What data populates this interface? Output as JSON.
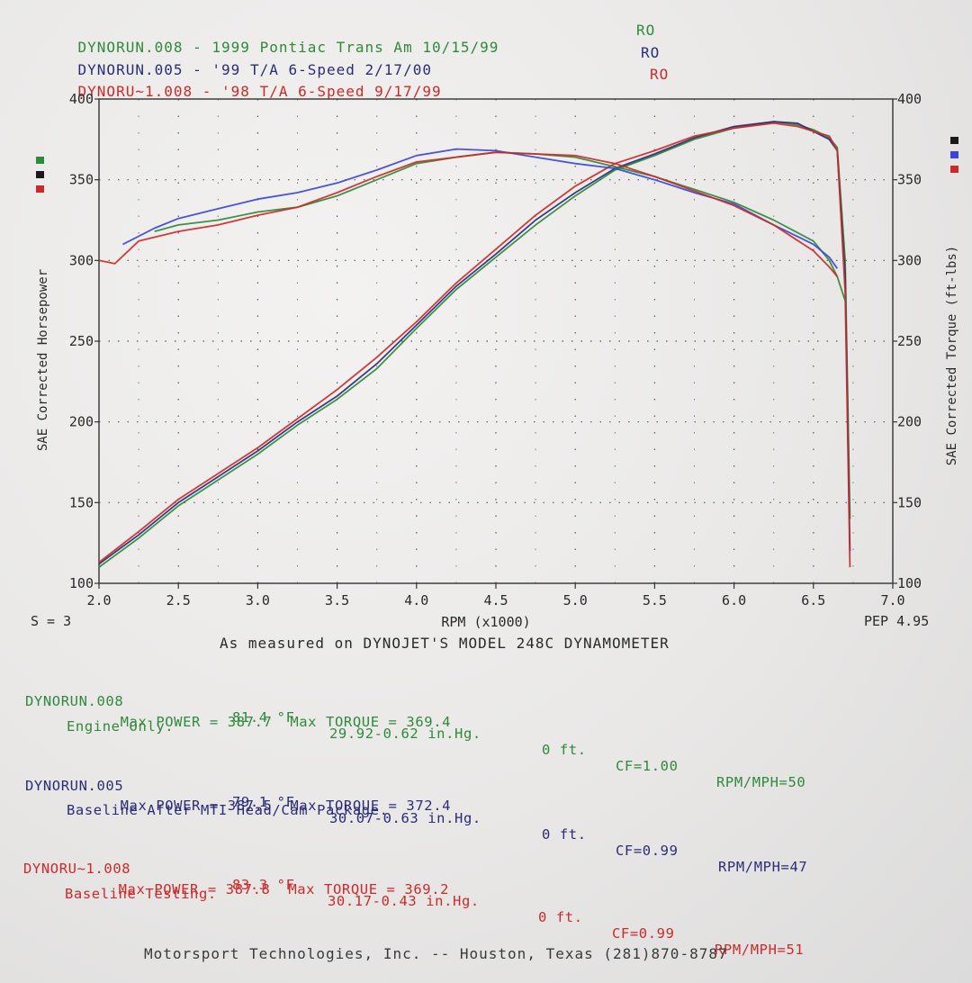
{
  "runs": [
    {
      "file": "DYNORUN.008",
      "desc": "1999 Pontiac Trans Am 10/15/99",
      "code": "RO",
      "color": "#2f8a3a",
      "temp": "81.4 °F",
      "pressure": "29.92-0.62 in.Hg.",
      "alt": "0 ft.",
      "cf": "CF=1.00",
      "rpm_mph": "RPM/MPH=50",
      "max_power": "Max POWER = 387.7",
      "max_torque": "Max TORQUE = 369.4",
      "note": "Engine Only."
    },
    {
      "file": "DYNORUN.005",
      "desc": "'99 T/A 6-Speed 2/17/00",
      "code": "RO",
      "color": "#2b2d78",
      "temp": "79.1 °F",
      "pressure": "30.07-0.63 in.Hg.",
      "alt": "0 ft.",
      "cf": "CF=0.99",
      "rpm_mph": "RPM/MPH=47",
      "max_power": "Max POWER = 387.5",
      "max_torque": "Max TORQUE = 372.4",
      "note": "Baseline After MTI Head/Cam Package."
    },
    {
      "file": "DYNORU~1.008",
      "desc": "'98 T/A 6-Speed 9/17/99",
      "code": "RO",
      "color": "#cc2a2a",
      "temp": "83.3 °F",
      "pressure": "30.17-0.43 in.Hg.",
      "alt": "0 ft.",
      "cf": "CF=0.99",
      "rpm_mph": "RPM/MPH=51",
      "max_power": "Max POWER = 387.8",
      "max_torque": "Max TORQUE = 369.2",
      "note": "Baseline Testing."
    }
  ],
  "chart_data": {
    "type": "line",
    "xlabel": "RPM (x1000)",
    "ylabel_left": "SAE Corrected Horsepower",
    "ylabel_right": "SAE Corrected Torque (ft-lbs)",
    "xlim": [
      2.0,
      7.0
    ],
    "ylim": [
      100,
      400
    ],
    "x_ticks": [
      "2.0",
      "2.5",
      "3.0",
      "3.5",
      "4.0",
      "4.5",
      "5.0",
      "5.5",
      "6.0",
      "6.5",
      "7.0"
    ],
    "y_ticks": [
      "100",
      "150",
      "200",
      "250",
      "300",
      "350",
      "400"
    ],
    "grid": true,
    "series": [
      {
        "name": "DYNORUN.008 Horsepower",
        "color": "#2f8a3a",
        "x": [
          2.0,
          2.25,
          2.5,
          2.75,
          3.0,
          3.25,
          3.5,
          3.75,
          4.0,
          4.25,
          4.5,
          4.75,
          5.0,
          5.25,
          5.5,
          5.75,
          6.0,
          6.25,
          6.4,
          6.5,
          6.6,
          6.65,
          6.7,
          6.73
        ],
        "y": [
          110,
          128,
          148,
          164,
          180,
          198,
          214,
          233,
          258,
          282,
          302,
          322,
          340,
          356,
          365,
          375,
          382,
          386,
          384,
          381,
          376,
          370,
          300,
          140
        ]
      },
      {
        "name": "DYNORUN.005 Horsepower",
        "color": "#2b2d78",
        "x": [
          2.0,
          2.25,
          2.5,
          2.75,
          3.0,
          3.25,
          3.5,
          3.75,
          4.0,
          4.25,
          4.5,
          4.75,
          5.0,
          5.25,
          5.5,
          5.75,
          6.0,
          6.25,
          6.4,
          6.5,
          6.6,
          6.65,
          6.7,
          6.73
        ],
        "y": [
          112,
          130,
          150,
          166,
          182,
          200,
          216,
          236,
          260,
          284,
          304,
          325,
          342,
          357,
          366,
          376,
          383,
          386,
          385,
          380,
          375,
          368,
          290,
          120
        ]
      },
      {
        "name": "DYNORU~1.008 Horsepower",
        "color": "#cc2a2a",
        "x": [
          2.0,
          2.25,
          2.5,
          2.75,
          3.0,
          3.25,
          3.5,
          3.75,
          4.0,
          4.25,
          4.5,
          4.75,
          5.0,
          5.25,
          5.5,
          5.75,
          6.0,
          6.25,
          6.4,
          6.5,
          6.6,
          6.65,
          6.7,
          6.73
        ],
        "y": [
          113,
          132,
          152,
          168,
          184,
          202,
          220,
          240,
          262,
          286,
          307,
          328,
          346,
          360,
          368,
          377,
          382,
          385,
          383,
          380,
          377,
          368,
          280,
          110
        ]
      },
      {
        "name": "DYNORUN.008 Torque",
        "color": "#2f8a3a",
        "x": [
          2.35,
          2.5,
          2.75,
          3.0,
          3.25,
          3.5,
          3.75,
          4.0,
          4.25,
          4.5,
          4.75,
          5.0,
          5.25,
          5.5,
          5.75,
          6.0,
          6.25,
          6.5,
          6.6,
          6.65,
          6.7
        ],
        "y": [
          318,
          322,
          325,
          330,
          333,
          340,
          350,
          360,
          364,
          367,
          366,
          364,
          358,
          352,
          344,
          336,
          325,
          312,
          300,
          290,
          275
        ]
      },
      {
        "name": "DYNORUN.005 Torque",
        "color": "#3c46d6",
        "x": [
          2.15,
          2.35,
          2.5,
          2.75,
          3.0,
          3.25,
          3.5,
          3.75,
          4.0,
          4.25,
          4.5,
          4.75,
          5.0,
          5.25,
          5.5,
          5.75,
          6.0,
          6.25,
          6.5,
          6.6,
          6.65
        ],
        "y": [
          310,
          320,
          326,
          332,
          338,
          342,
          348,
          356,
          365,
          369,
          368,
          364,
          360,
          357,
          350,
          342,
          335,
          322,
          310,
          302,
          295
        ]
      },
      {
        "name": "DYNORU~1.008 Torque",
        "color": "#cc2a2a",
        "x": [
          2.0,
          2.1,
          2.25,
          2.5,
          2.75,
          3.0,
          3.25,
          3.5,
          3.75,
          4.0,
          4.25,
          4.5,
          4.75,
          5.0,
          5.25,
          5.5,
          5.75,
          6.0,
          6.25,
          6.5,
          6.6,
          6.65
        ],
        "y": [
          300,
          298,
          312,
          318,
          322,
          328,
          333,
          342,
          352,
          361,
          364,
          367,
          366,
          365,
          360,
          352,
          343,
          334,
          322,
          306,
          296,
          290
        ]
      }
    ]
  },
  "smoothing": "S = 3",
  "pep": "PEP 4.95",
  "measured": "As measured on DYNOJET'S MODEL 248C DYNAMOMETER",
  "footer": "Motorsport Technologies, Inc. -- Houston, Texas (281)870-8787",
  "legend_colors_left": [
    "#2f8a3a",
    "#1a1a1a",
    "#cc2a2a"
  ],
  "legend_colors_right": [
    "#1a1a1a",
    "#3c46d6",
    "#cc2a2a"
  ]
}
